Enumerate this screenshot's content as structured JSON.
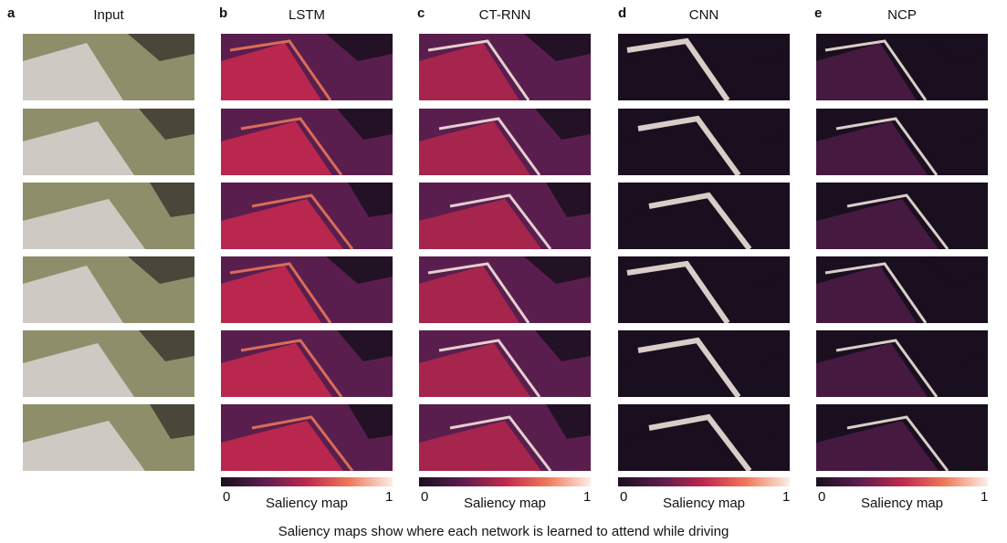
{
  "panels": [
    {
      "letter": "a",
      "title": "Input",
      "kind": "input"
    },
    {
      "letter": "b",
      "title": "LSTM",
      "kind": "saliency",
      "colorbar": {
        "min": "0",
        "max": "1",
        "label": "Saliency map"
      }
    },
    {
      "letter": "c",
      "title": "CT-RNN",
      "kind": "saliency",
      "colorbar": {
        "min": "0",
        "max": "1",
        "label": "Saliency map"
      }
    },
    {
      "letter": "d",
      "title": "CNN",
      "kind": "saliency",
      "colorbar": {
        "min": "0",
        "max": "1",
        "label": "Saliency map"
      }
    },
    {
      "letter": "e",
      "title": "NCP",
      "kind": "saliency",
      "colorbar": {
        "min": "0",
        "max": "1",
        "label": "Saliency map"
      }
    }
  ],
  "caption": "Saliency maps show where each network is learned to attend while driving",
  "colors": {
    "cmap_low": "#1a0f1f",
    "cmap_mid1": "#5a1e4e",
    "cmap_mid2": "#c0284e",
    "cmap_mid3": "#f07a5a",
    "cmap_high": "#fbeee6",
    "road": "#cfc9c4",
    "grass": "#8e8f6a",
    "trees": "#3e3a30"
  }
}
